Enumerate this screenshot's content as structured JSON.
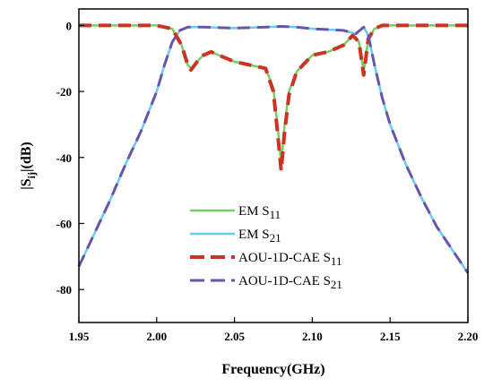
{
  "chart_data": {
    "type": "line",
    "xlabel": "Frequency(GHz)",
    "ylabel_main": "|S",
    "ylabel_sub": "ij",
    "ylabel_tail": "|(dB)",
    "xlim": [
      1.95,
      2.2
    ],
    "ylim": [
      -90,
      5
    ],
    "xticks": [
      1.95,
      2.0,
      2.05,
      2.1,
      2.15,
      2.2
    ],
    "xtick_labels": [
      "1.95",
      "2.00",
      "2.05",
      "2.10",
      "2.15",
      "2.20"
    ],
    "yticks": [
      0,
      -20,
      -40,
      -60,
      -80
    ],
    "ytick_labels": [
      "0",
      "-20",
      "-40",
      "-60",
      "-80"
    ],
    "grid": false,
    "legend_position": "bottom-center",
    "series": [
      {
        "name_main": "EM S",
        "name_sub": "11",
        "color": "#77cc66",
        "dash": "solid",
        "x": [
          1.95,
          2.0,
          2.01,
          2.016,
          2.02,
          2.022,
          2.026,
          2.03,
          2.035,
          2.04,
          2.05,
          2.06,
          2.07,
          2.075,
          2.078,
          2.08,
          2.082,
          2.085,
          2.09,
          2.1,
          2.11,
          2.12,
          2.126,
          2.13,
          2.133,
          2.136,
          2.14,
          2.145,
          2.15,
          2.2
        ],
        "y": [
          0,
          0,
          -1,
          -6,
          -12,
          -13,
          -11,
          -9,
          -8,
          -9,
          -11,
          -12,
          -13,
          -19,
          -32,
          -42,
          -31,
          -20,
          -14,
          -9,
          -8,
          -6,
          -3,
          -5,
          -14,
          -4,
          -1,
          0,
          0,
          0
        ]
      },
      {
        "name_main": "EM S",
        "name_sub": "21",
        "color": "#66ccee",
        "dash": "solid",
        "x": [
          1.95,
          1.96,
          1.97,
          1.98,
          1.99,
          2.0,
          2.005,
          2.01,
          2.015,
          2.02,
          2.03,
          2.05,
          2.07,
          2.08,
          2.09,
          2.1,
          2.12,
          2.128,
          2.133,
          2.136,
          2.14,
          2.145,
          2.15,
          2.16,
          2.17,
          2.18,
          2.19,
          2.2
        ],
        "y": [
          -73,
          -63,
          -53,
          -42,
          -32,
          -20,
          -12,
          -5,
          -1.5,
          -0.5,
          -0.5,
          -0.8,
          -0.5,
          -0.3,
          -0.5,
          -1,
          -1.5,
          -2.5,
          -0.5,
          -3,
          -12,
          -22,
          -30,
          -42,
          -52,
          -61,
          -68,
          -75
        ]
      },
      {
        "name_main": "AOU-1D-CAE S",
        "name_sub": "11",
        "color": "#cc3322",
        "dash": "dashed",
        "x": [
          1.95,
          2.0,
          2.01,
          2.016,
          2.02,
          2.022,
          2.026,
          2.03,
          2.035,
          2.04,
          2.05,
          2.06,
          2.07,
          2.075,
          2.078,
          2.08,
          2.082,
          2.085,
          2.09,
          2.1,
          2.11,
          2.12,
          2.126,
          2.13,
          2.133,
          2.136,
          2.14,
          2.145,
          2.15,
          2.2
        ],
        "y": [
          0,
          0,
          -1,
          -6,
          -12,
          -13.5,
          -11,
          -9,
          -8,
          -9,
          -11,
          -12,
          -13,
          -20,
          -34,
          -44,
          -33,
          -21,
          -14,
          -9,
          -8,
          -6,
          -3,
          -5,
          -15,
          -4,
          -1,
          0,
          0,
          0
        ]
      },
      {
        "name_main": "AOU-1D-CAE S",
        "name_sub": "21",
        "color": "#6655aa",
        "dash": "dashed",
        "x": [
          1.95,
          1.96,
          1.97,
          1.98,
          1.99,
          2.0,
          2.005,
          2.01,
          2.015,
          2.02,
          2.03,
          2.05,
          2.07,
          2.08,
          2.09,
          2.1,
          2.12,
          2.128,
          2.133,
          2.136,
          2.14,
          2.145,
          2.15,
          2.16,
          2.17,
          2.18,
          2.19,
          2.2
        ],
        "y": [
          -73,
          -63,
          -53,
          -42,
          -32,
          -20,
          -12,
          -5,
          -1.5,
          -0.5,
          -0.5,
          -0.8,
          -0.5,
          -0.3,
          -0.5,
          -1,
          -1.5,
          -2.5,
          -0.5,
          -3,
          -12,
          -22,
          -30,
          -42,
          -52,
          -61,
          -68,
          -75
        ]
      }
    ]
  }
}
